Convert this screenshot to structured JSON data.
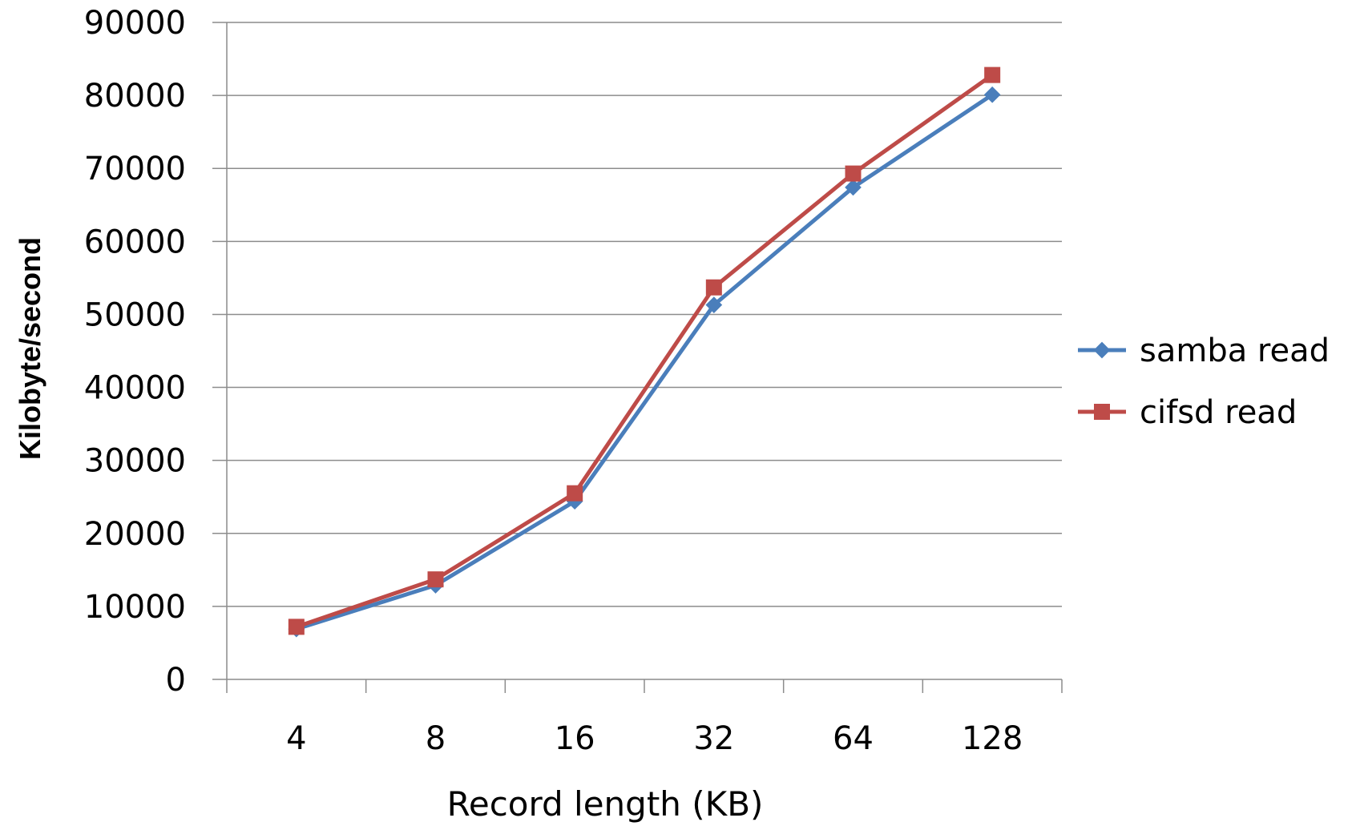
{
  "chart_data": {
    "type": "line",
    "title": "",
    "xlabel": "Record length (KB)",
    "ylabel": "Kilobyte/second",
    "categories": [
      "4",
      "8",
      "16",
      "32",
      "64",
      "128"
    ],
    "ylim": [
      0,
      90000
    ],
    "yticks": [
      0,
      10000,
      20000,
      30000,
      40000,
      50000,
      60000,
      70000,
      80000,
      90000
    ],
    "grid": true,
    "legend_position": "right",
    "series": [
      {
        "name": "samba read",
        "color": "#4a7ebb",
        "marker": "diamond",
        "values": [
          6900,
          12900,
          24400,
          51300,
          67400,
          80100
        ]
      },
      {
        "name": "cifsd read",
        "color": "#be4b48",
        "marker": "square",
        "values": [
          7200,
          13700,
          25500,
          53700,
          69300,
          82800
        ]
      }
    ]
  }
}
